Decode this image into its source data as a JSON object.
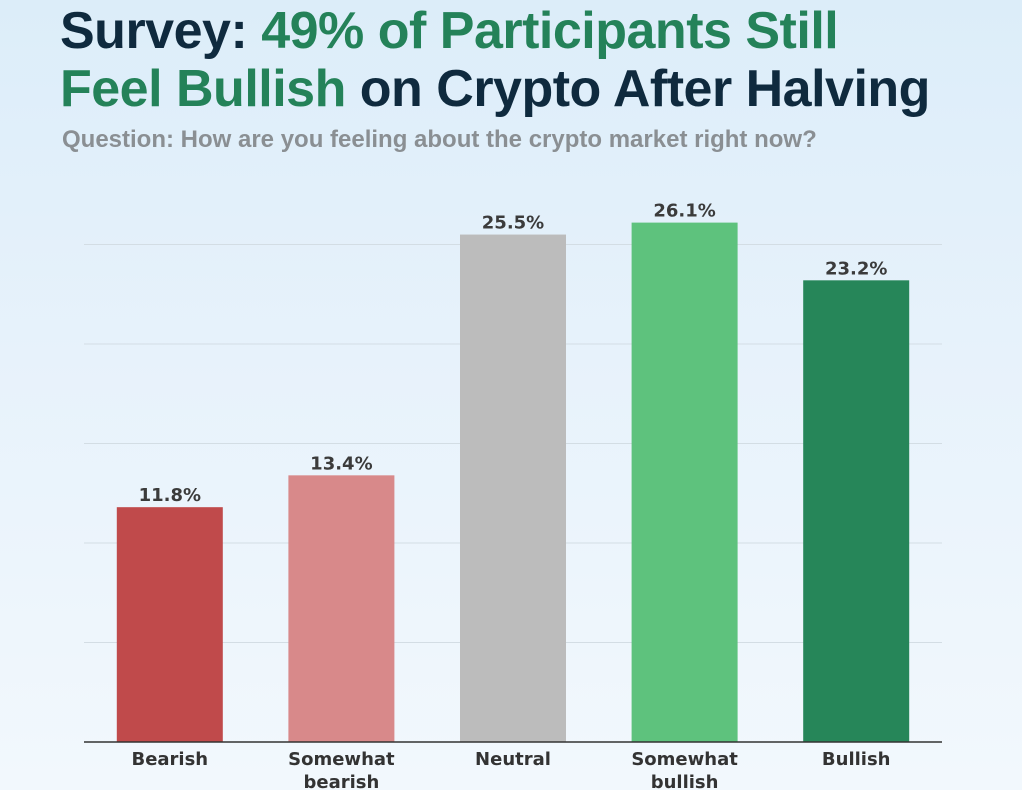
{
  "header": {
    "title_part1": "Survey: ",
    "title_part2": "49% of Participants Still",
    "title_part3": "Feel Bullish",
    "title_part4": " on Crypto After Halving",
    "subtitle": "Question: How are you feeling about the crypto market right now?"
  },
  "colors": {
    "title_dark": "#0f2a3e",
    "title_green": "#248259",
    "grid": "#d3dde4",
    "axis": "#333333"
  },
  "chart_data": {
    "type": "bar",
    "categories": [
      [
        "Bearish"
      ],
      [
        "Somewhat",
        "bearish"
      ],
      [
        "Neutral"
      ],
      [
        "Somewhat",
        "bullish"
      ],
      [
        "Bullish"
      ]
    ],
    "values": [
      11.8,
      13.4,
      25.5,
      26.1,
      23.2
    ],
    "value_labels": [
      "11.8%",
      "13.4%",
      "25.5%",
      "26.1%",
      "23.2%"
    ],
    "bar_colors": [
      "#c04a4b",
      "#d8898a",
      "#bcbcbc",
      "#5ec27d",
      "#268659"
    ],
    "ylim": [
      0,
      30
    ],
    "grid": true,
    "xlabel": "",
    "ylabel": ""
  }
}
